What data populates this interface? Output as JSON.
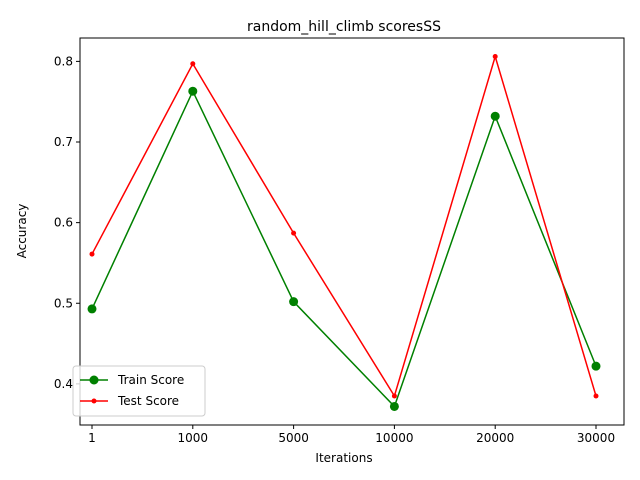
{
  "chart_data": {
    "type": "line",
    "title": "random_hill_climb scoresSS",
    "xlabel": "Iterations",
    "ylabel": "Accuracy",
    "categories": [
      "1",
      "1000",
      "5000",
      "10000",
      "20000",
      "30000"
    ],
    "ylim": [
      0.349,
      0.829
    ],
    "yticks": [
      0.4,
      0.5,
      0.6,
      0.7,
      0.8
    ],
    "ytick_labels": [
      "0.4",
      "0.5",
      "0.6",
      "0.7",
      "0.8"
    ],
    "grid": false,
    "legend_position": "lower-left",
    "series": [
      {
        "name": "Train Score",
        "color": "#008000",
        "marker": "circle-large",
        "values": [
          0.493,
          0.763,
          0.502,
          0.372,
          0.732,
          0.422
        ]
      },
      {
        "name": "Test Score",
        "color": "#ff0000",
        "marker": "circle-small",
        "values": [
          0.561,
          0.797,
          0.587,
          0.385,
          0.806,
          0.385
        ]
      }
    ]
  }
}
